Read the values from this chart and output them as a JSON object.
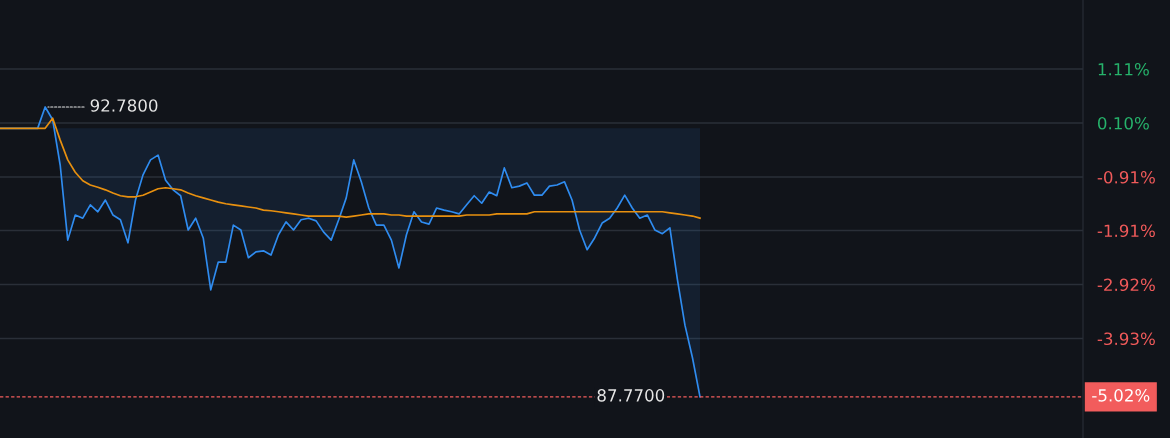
{
  "chart_data": {
    "type": "line",
    "categories": [
      null,
      null,
      null,
      null,
      null,
      null,
      null,
      null,
      null,
      null,
      null,
      null,
      null,
      null,
      null,
      null,
      null,
      null,
      null,
      null,
      null,
      null,
      null,
      null,
      null,
      null,
      null,
      null,
      null,
      null,
      null,
      null,
      null,
      null,
      null,
      null,
      null,
      null,
      null,
      null,
      null,
      null,
      null,
      null,
      null,
      null,
      null,
      null,
      null,
      null,
      null,
      null,
      null,
      null,
      null,
      null,
      null,
      null,
      null,
      null,
      null,
      null,
      null,
      null,
      null,
      null,
      null,
      null,
      null,
      null,
      null,
      null,
      null,
      null,
      null,
      null,
      null,
      null,
      null,
      null,
      null,
      null,
      null,
      null,
      null,
      null,
      null,
      null,
      null,
      null,
      null,
      null,
      null,
      null
    ],
    "series": [
      {
        "type": "area",
        "color": "#2f8cf0",
        "values": [
          0,
          0,
          0,
          0,
          0,
          0,
          0.4,
          0.16,
          -0.69,
          -2.09,
          -1.62,
          -1.68,
          -1.43,
          -1.56,
          -1.34,
          -1.62,
          -1.71,
          -2.14,
          -1.34,
          -0.87,
          -0.59,
          -0.5,
          -0.97,
          -1.15,
          -1.26,
          -1.9,
          -1.68,
          -2.05,
          -3.02,
          -2.5,
          -2.5,
          -1.81,
          -1.9,
          -2.42,
          -2.31,
          -2.29,
          -2.37,
          -1.99,
          -1.75,
          -1.9,
          -1.71,
          -1.68,
          -1.73,
          -1.94,
          -2.09,
          -1.71,
          -1.3,
          -0.59,
          -1.0,
          -1.49,
          -1.81,
          -1.81,
          -2.09,
          -2.61,
          -1.99,
          -1.56,
          -1.75,
          -1.79,
          -1.49,
          -1.53,
          -1.56,
          -1.6,
          -1.43,
          -1.26,
          -1.4,
          -1.19,
          -1.26,
          -0.74,
          -1.11,
          -1.08,
          -1.02,
          -1.25,
          -1.25,
          -1.08,
          -1.06,
          -1.0,
          -1.34,
          -1.9,
          -2.27,
          -2.05,
          -1.77,
          -1.68,
          -1.49,
          -1.25,
          -1.49,
          -1.68,
          -1.62,
          -1.9,
          -1.97,
          -1.86,
          -2.83,
          -3.68,
          -4.29,
          -5.02
        ]
      },
      {
        "color": "#e8900f",
        "values": [
          0,
          0,
          0,
          0,
          0,
          0,
          0,
          0.19,
          -0.22,
          -0.59,
          -0.82,
          -0.98,
          -1.06,
          -1.1,
          -1.15,
          -1.21,
          -1.26,
          -1.28,
          -1.28,
          -1.25,
          -1.19,
          -1.13,
          -1.11,
          -1.13,
          -1.15,
          -1.21,
          -1.26,
          -1.3,
          -1.34,
          -1.38,
          -1.41,
          -1.43,
          -1.45,
          -1.47,
          -1.49,
          -1.53,
          -1.54,
          -1.56,
          -1.58,
          -1.6,
          -1.62,
          -1.64,
          -1.64,
          -1.64,
          -1.64,
          -1.64,
          -1.66,
          -1.64,
          -1.62,
          -1.6,
          -1.6,
          -1.6,
          -1.62,
          -1.62,
          -1.64,
          -1.64,
          -1.64,
          -1.64,
          -1.64,
          -1.64,
          -1.64,
          -1.64,
          -1.62,
          -1.62,
          -1.62,
          -1.62,
          -1.6,
          -1.6,
          -1.6,
          -1.6,
          -1.6,
          -1.56,
          -1.56,
          -1.56,
          -1.56,
          -1.56,
          -1.56,
          -1.56,
          -1.56,
          -1.56,
          -1.56,
          -1.56,
          -1.56,
          -1.56,
          -1.56,
          -1.56,
          -1.56,
          -1.56,
          -1.56,
          -1.58,
          -1.6,
          -1.62,
          -1.64,
          -1.68
        ]
      }
    ],
    "ylim": [
      -5.79,
      2.4
    ],
    "yticks": [
      {
        "value": 1.11,
        "label": "1.11%"
      },
      {
        "value": 0.1,
        "label": "0.10%"
      },
      {
        "value": -0.91,
        "label": "-0.91%"
      },
      {
        "value": -1.91,
        "label": "-1.91%"
      },
      {
        "value": -2.92,
        "label": "-2.92%"
      },
      {
        "value": -3.93,
        "label": "-3.93%"
      }
    ],
    "tick_labels": "y",
    "grid": true,
    "ref_lines": [
      {
        "axis": "y",
        "value": -5.02,
        "label": "-5.02%",
        "color": "#f25c5c",
        "line_style": "dashed"
      }
    ],
    "annotations": [
      "92.7800",
      {
        "text": "87.7700",
        "y": -5.02
      }
    ]
  }
}
